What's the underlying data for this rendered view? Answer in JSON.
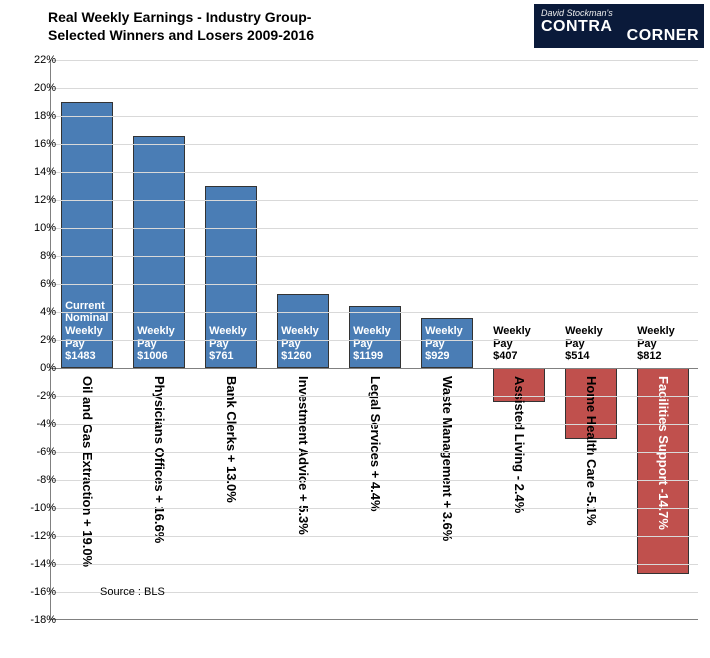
{
  "title": "Real Weekly Earnings - Industry Group-\nSelected Winners and Losers 2009-2016",
  "logo": {
    "tagline": "David Stockman's",
    "brand_top": "CONTRA",
    "brand_bottom": "CORNER"
  },
  "source": "Source : BLS",
  "chart": {
    "type": "bar",
    "y_min": -18,
    "y_max": 22,
    "y_tick_step": 2,
    "y_tick_suffix": "%",
    "grid_color": "#d9d9d9",
    "axis_color": "#808080",
    "background_color": "#ffffff",
    "pos_color": "#4a7db5",
    "neg_color": "#c0504d",
    "bar_border": "#333333",
    "pay_label_prefix_first": "Current\nNominal\nWeekly\nPay\n",
    "pay_label_prefix": "Weekly\nPay\n",
    "bars": [
      {
        "category": "Oil and Gas Extraction",
        "pct": 19.0,
        "pct_label": "+ 19.0%",
        "pay": "$1483"
      },
      {
        "category": "Physicians Offices",
        "pct": 16.6,
        "pct_label": "+ 16.6%",
        "pay": "$1006"
      },
      {
        "category": "Bank Clerks",
        "pct": 13.0,
        "pct_label": "+ 13.0%",
        "pay": "$761"
      },
      {
        "category": "Investment Advice",
        "pct": 5.3,
        "pct_label": "+ 5.3%",
        "pay": "$1260"
      },
      {
        "category": "Legal Services",
        "pct": 4.4,
        "pct_label": "+ 4.4%",
        "pay": "$1199"
      },
      {
        "category": "Waste Management",
        "pct": 3.6,
        "pct_label": "+ 3.6%",
        "pay": "$929"
      },
      {
        "category": "Assisted Living",
        "pct": -2.4,
        "pct_label": "- 2.4%",
        "pay": "$407"
      },
      {
        "category": "Home Health Care",
        "pct": -5.1,
        "pct_label": "-5.1%",
        "pay": "$514"
      },
      {
        "category": "Facilities Support",
        "pct": -14.7,
        "pct_label": "-14.7%",
        "pay": "$812"
      }
    ]
  }
}
